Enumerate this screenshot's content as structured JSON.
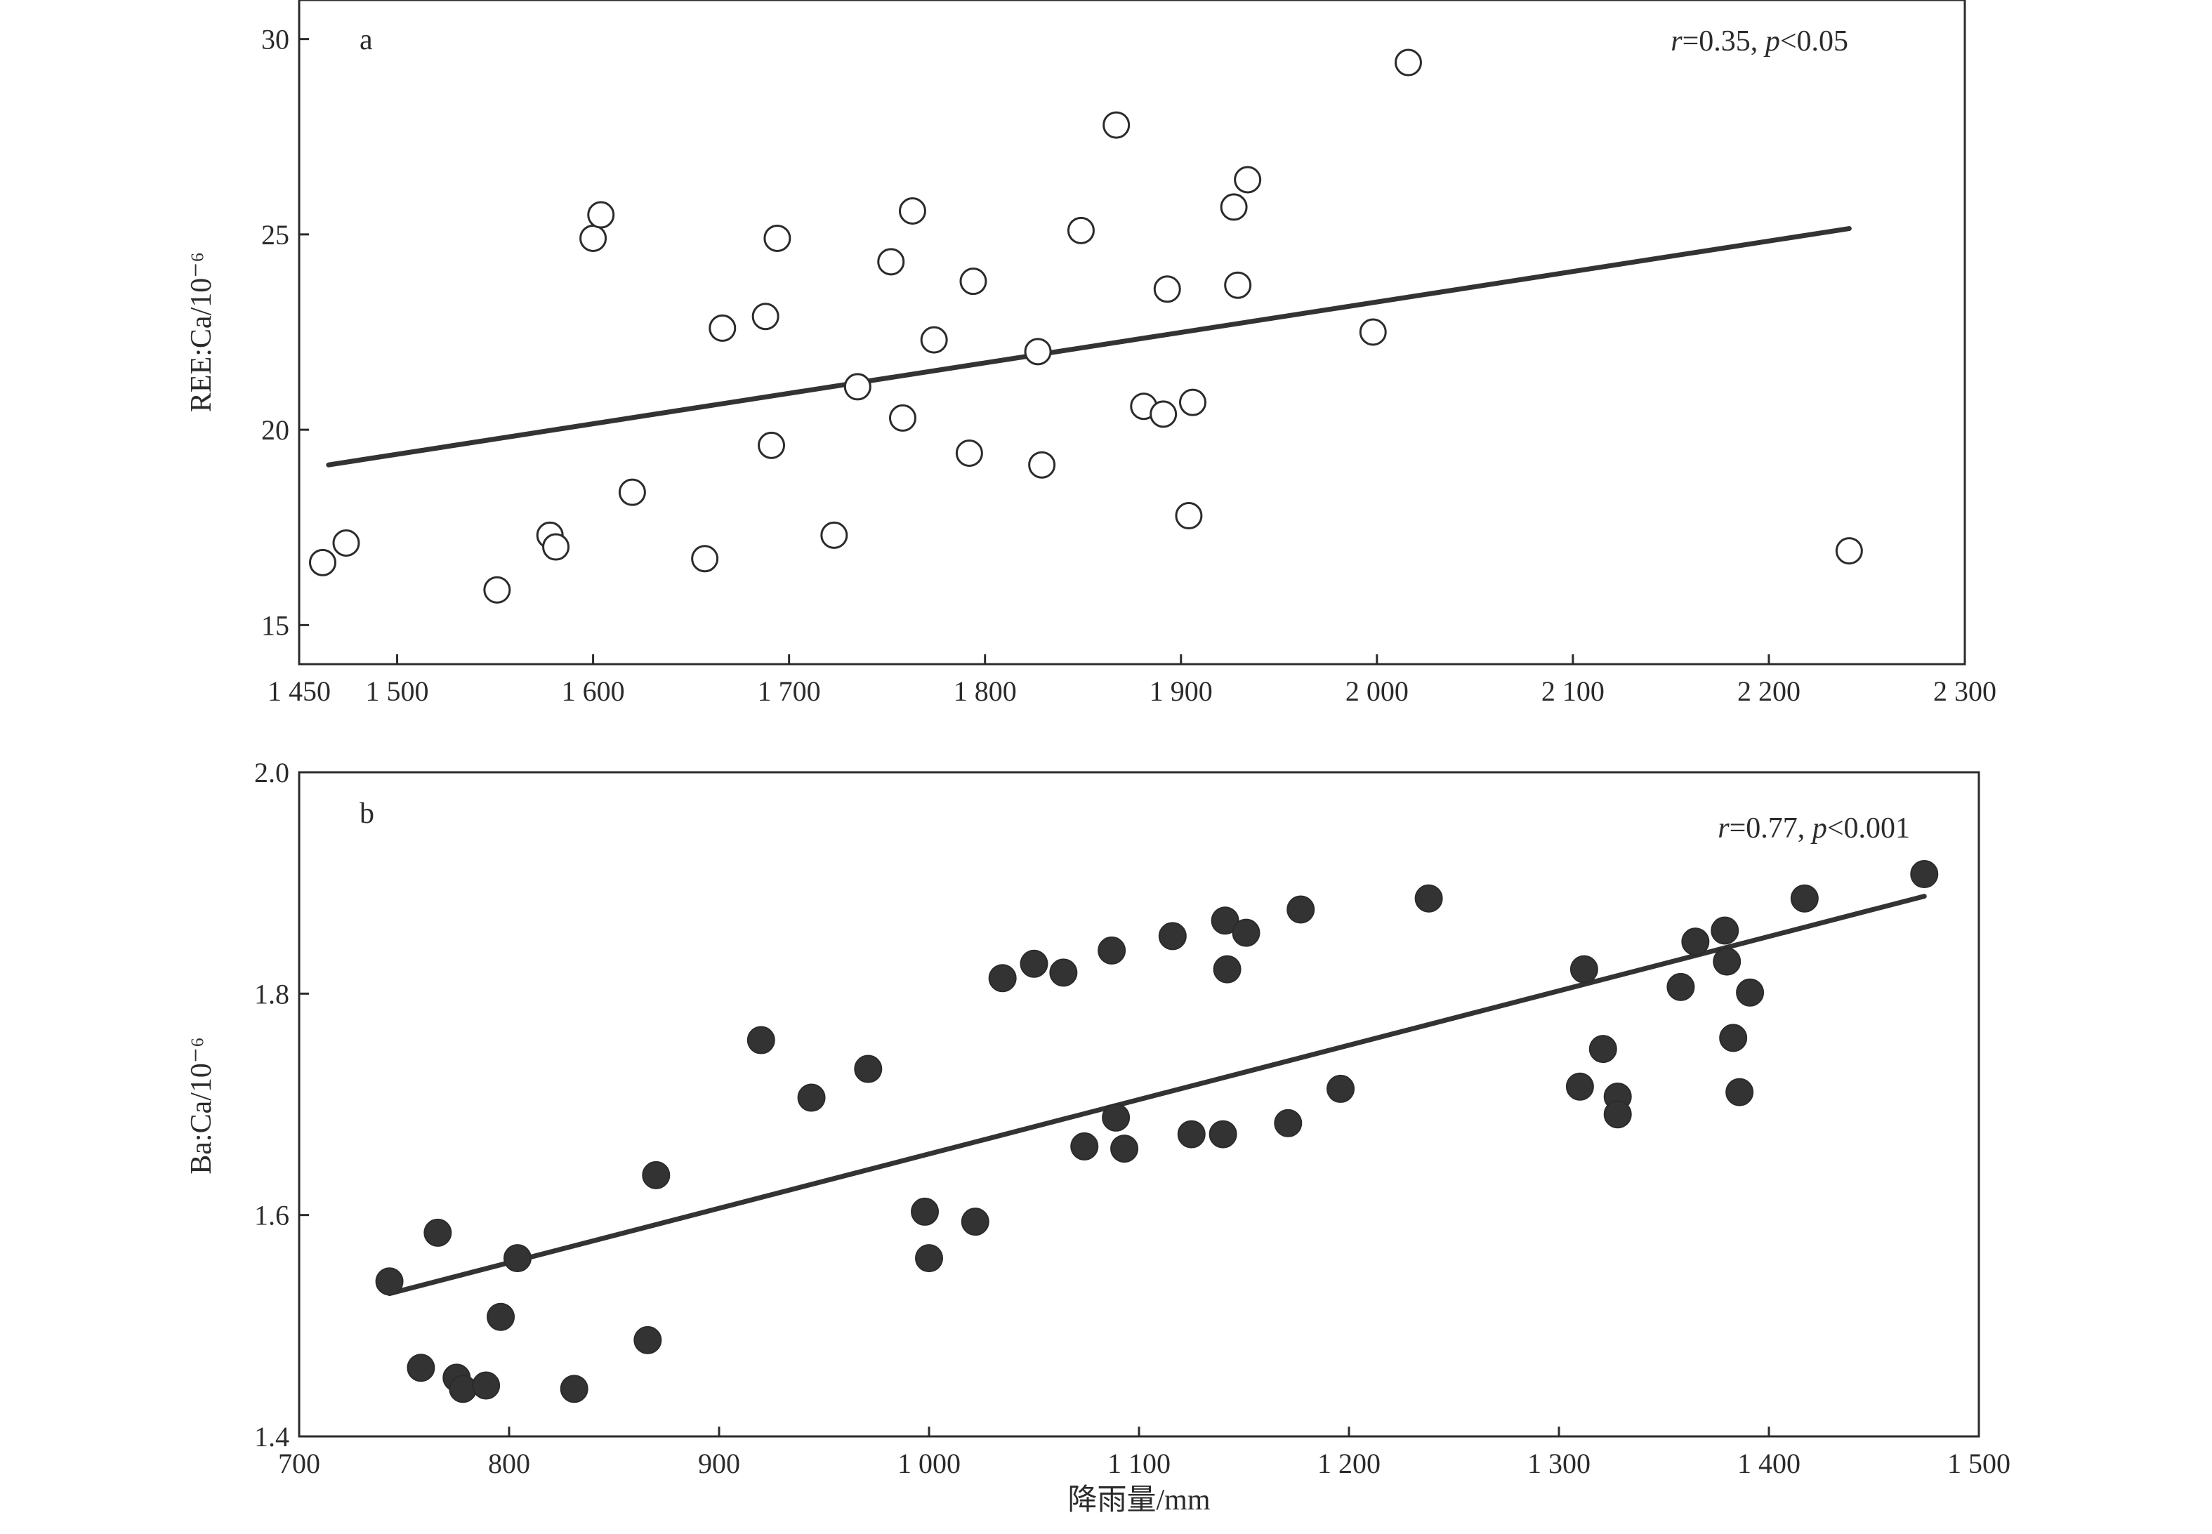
{
  "chart_data": [
    {
      "type": "scatter",
      "panel_label": "a",
      "annotation": {
        "r_symbol": "r",
        "r_value": "=0.35, ",
        "p_symbol": "p",
        "p_value": "<0.05"
      },
      "ylabel": "REE:Ca/10⁻⁶",
      "xlabel": "",
      "xlim": [
        1450,
        2300
      ],
      "ylim": [
        14,
        31
      ],
      "xticks": [
        1450,
        1500,
        1600,
        1700,
        1800,
        1900,
        2000,
        2100,
        2200,
        2300
      ],
      "xtick_labels": [
        "1 450",
        "1 500",
        "1 600",
        "1 700",
        "1 800",
        "1 900",
        "2 000",
        "2 100",
        "2 200",
        "2 300"
      ],
      "yticks": [
        15,
        20,
        25,
        30
      ],
      "ytick_labels": [
        "15",
        "20",
        "25",
        "30"
      ],
      "marker": "open-circle",
      "points": [
        {
          "x": 1462,
          "y": 16.6
        },
        {
          "x": 1474,
          "y": 17.1
        },
        {
          "x": 1551,
          "y": 15.9
        },
        {
          "x": 1578,
          "y": 17.3
        },
        {
          "x": 1581,
          "y": 17.0
        },
        {
          "x": 1600,
          "y": 24.9
        },
        {
          "x": 1604,
          "y": 25.5
        },
        {
          "x": 1620,
          "y": 18.4
        },
        {
          "x": 1657,
          "y": 16.7
        },
        {
          "x": 1666,
          "y": 22.6
        },
        {
          "x": 1688,
          "y": 22.9
        },
        {
          "x": 1691,
          "y": 19.6
        },
        {
          "x": 1694,
          "y": 24.9
        },
        {
          "x": 1723,
          "y": 17.3
        },
        {
          "x": 1735,
          "y": 21.1
        },
        {
          "x": 1752,
          "y": 24.3
        },
        {
          "x": 1758,
          "y": 20.3
        },
        {
          "x": 1763,
          "y": 25.6
        },
        {
          "x": 1774,
          "y": 22.3
        },
        {
          "x": 1792,
          "y": 19.4
        },
        {
          "x": 1794,
          "y": 23.8
        },
        {
          "x": 1827,
          "y": 22.0
        },
        {
          "x": 1829,
          "y": 19.1
        },
        {
          "x": 1849,
          "y": 25.1
        },
        {
          "x": 1867,
          "y": 27.8
        },
        {
          "x": 1881,
          "y": 20.6
        },
        {
          "x": 1891,
          "y": 20.4
        },
        {
          "x": 1893,
          "y": 23.6
        },
        {
          "x": 1904,
          "y": 17.8
        },
        {
          "x": 1906,
          "y": 20.7
        },
        {
          "x": 1927,
          "y": 25.7
        },
        {
          "x": 1929,
          "y": 23.7
        },
        {
          "x": 1934,
          "y": 26.4
        },
        {
          "x": 1998,
          "y": 22.5
        },
        {
          "x": 2016,
          "y": 29.4
        },
        {
          "x": 2241,
          "y": 16.9
        }
      ],
      "trend_line": {
        "x": [
          1465,
          2241
        ],
        "y": [
          19.1,
          25.15
        ]
      }
    },
    {
      "type": "scatter",
      "panel_label": "b",
      "annotation": {
        "r_symbol": "r",
        "r_value": "=0.77, ",
        "p_symbol": "p",
        "p_value": "<0.001"
      },
      "ylabel": "Ba:Ca/10⁻⁶",
      "xlabel": "降雨量/mm",
      "xlim": [
        700,
        1500
      ],
      "ylim": [
        1.4,
        2.0
      ],
      "xticks": [
        700,
        800,
        900,
        1000,
        1100,
        1200,
        1300,
        1400,
        1500
      ],
      "xtick_labels": [
        "700",
        "800",
        "900",
        "1 000",
        "1 100",
        "1 200",
        "1 300",
        "1 400",
        "1 500"
      ],
      "yticks": [
        1.4,
        1.6,
        1.8,
        2.0
      ],
      "ytick_labels": [
        "1.4",
        "1.6",
        "1.8",
        "2.0"
      ],
      "marker": "filled-circle",
      "points": [
        {
          "x": 743,
          "y": 1.54
        },
        {
          "x": 758,
          "y": 1.462
        },
        {
          "x": 766,
          "y": 1.584
        },
        {
          "x": 775,
          "y": 1.453
        },
        {
          "x": 778,
          "y": 1.443
        },
        {
          "x": 789,
          "y": 1.446
        },
        {
          "x": 796,
          "y": 1.508
        },
        {
          "x": 804,
          "y": 1.561
        },
        {
          "x": 831,
          "y": 1.443
        },
        {
          "x": 866,
          "y": 1.487
        },
        {
          "x": 870,
          "y": 1.636
        },
        {
          "x": 920,
          "y": 1.758
        },
        {
          "x": 944,
          "y": 1.706
        },
        {
          "x": 971,
          "y": 1.732
        },
        {
          "x": 998,
          "y": 1.603
        },
        {
          "x": 1000,
          "y": 1.561
        },
        {
          "x": 1022,
          "y": 1.594
        },
        {
          "x": 1035,
          "y": 1.814
        },
        {
          "x": 1050,
          "y": 1.827
        },
        {
          "x": 1064,
          "y": 1.819
        },
        {
          "x": 1074,
          "y": 1.662
        },
        {
          "x": 1087,
          "y": 1.839
        },
        {
          "x": 1089,
          "y": 1.688
        },
        {
          "x": 1093,
          "y": 1.66
        },
        {
          "x": 1116,
          "y": 1.852
        },
        {
          "x": 1125,
          "y": 1.673
        },
        {
          "x": 1140,
          "y": 1.673
        },
        {
          "x": 1141,
          "y": 1.866
        },
        {
          "x": 1142,
          "y": 1.822
        },
        {
          "x": 1151,
          "y": 1.855
        },
        {
          "x": 1171,
          "y": 1.683
        },
        {
          "x": 1177,
          "y": 1.876
        },
        {
          "x": 1196,
          "y": 1.714
        },
        {
          "x": 1238,
          "y": 1.886
        },
        {
          "x": 1310,
          "y": 1.716
        },
        {
          "x": 1312,
          "y": 1.822
        },
        {
          "x": 1321,
          "y": 1.75
        },
        {
          "x": 1328,
          "y": 1.707
        },
        {
          "x": 1328,
          "y": 1.691
        },
        {
          "x": 1358,
          "y": 1.806
        },
        {
          "x": 1365,
          "y": 1.847
        },
        {
          "x": 1379,
          "y": 1.857
        },
        {
          "x": 1380,
          "y": 1.829
        },
        {
          "x": 1383,
          "y": 1.76
        },
        {
          "x": 1386,
          "y": 1.711
        },
        {
          "x": 1391,
          "y": 1.801
        },
        {
          "x": 1417,
          "y": 1.886
        },
        {
          "x": 1474,
          "y": 1.908
        }
      ],
      "trend_line": {
        "x": [
          743,
          1474
        ],
        "y": [
          1.529,
          1.888
        ]
      }
    }
  ]
}
